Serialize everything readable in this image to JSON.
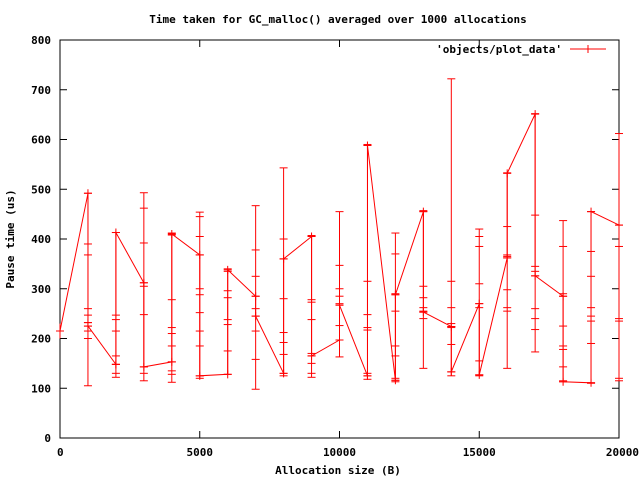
{
  "chart_data": {
    "type": "line",
    "title": "Time taken for GC_malloc() averaged over 1000 allocations",
    "xlabel": "Allocation size (B)",
    "ylabel": "Pause time (us)",
    "xlim": [
      0,
      20000
    ],
    "ylim": [
      0,
      800
    ],
    "x_ticks": [
      0,
      5000,
      10000,
      15000,
      20000
    ],
    "y_ticks": [
      0,
      100,
      200,
      300,
      400,
      500,
      600,
      700,
      800
    ],
    "x_tick_labels": [
      "0",
      "5000",
      "10000",
      "15000",
      "20000"
    ],
    "y_tick_labels": [
      "0",
      "100",
      "200",
      "300",
      "400",
      "500",
      "600",
      "700",
      "800"
    ],
    "grid": false,
    "legend_position": "top-right",
    "series": [
      {
        "name": "'objects/plot_data'",
        "color": "#ff0000",
        "points": [
          {
            "x": 0,
            "y": 215
          },
          {
            "x": 1000,
            "y": 492
          },
          {
            "x": 1000,
            "y": 232
          },
          {
            "x": 1000,
            "y": 225
          },
          {
            "x": 2000,
            "y": 148
          },
          {
            "x": 2000,
            "y": 148
          },
          {
            "x": 2000,
            "y": 413
          },
          {
            "x": 3000,
            "y": 312
          },
          {
            "x": 3000,
            "y": 143
          },
          {
            "x": 4000,
            "y": 153
          },
          {
            "x": 4000,
            "y": 410
          },
          {
            "x": 5000,
            "y": 368
          },
          {
            "x": 5000,
            "y": 125
          },
          {
            "x": 6000,
            "y": 128
          },
          {
            "x": 6000,
            "y": 338
          },
          {
            "x": 7000,
            "y": 285
          },
          {
            "x": 7000,
            "y": 245
          },
          {
            "x": 8000,
            "y": 130
          },
          {
            "x": 8000,
            "y": 360
          },
          {
            "x": 9000,
            "y": 405
          },
          {
            "x": 9000,
            "y": 165
          },
          {
            "x": 10000,
            "y": 197
          },
          {
            "x": 10000,
            "y": 267
          },
          {
            "x": 11000,
            "y": 125
          },
          {
            "x": 11000,
            "y": 588
          },
          {
            "x": 12000,
            "y": 116
          },
          {
            "x": 12000,
            "y": 288
          },
          {
            "x": 13000,
            "y": 455
          },
          {
            "x": 13000,
            "y": 253
          },
          {
            "x": 14000,
            "y": 224
          },
          {
            "x": 14000,
            "y": 133
          },
          {
            "x": 15000,
            "y": 270
          },
          {
            "x": 15000,
            "y": 127
          },
          {
            "x": 16000,
            "y": 362
          },
          {
            "x": 16000,
            "y": 532
          },
          {
            "x": 17000,
            "y": 651
          },
          {
            "x": 17000,
            "y": 326
          },
          {
            "x": 18000,
            "y": 285
          },
          {
            "x": 18000,
            "y": 113
          },
          {
            "x": 19000,
            "y": 111
          },
          {
            "x": 19000,
            "y": 455
          },
          {
            "x": 20000,
            "y": 428
          }
        ],
        "vertical_ranges": [
          {
            "x": 0,
            "min": 200,
            "max": 230
          },
          {
            "x": 1000,
            "min": 105,
            "max": 493,
            "marks": [
              492,
              390,
              368,
              260,
              247,
              232,
              225,
              215,
              200,
              105
            ]
          },
          {
            "x": 2000,
            "min": 122,
            "max": 413,
            "marks": [
              413,
              247,
              238,
              215,
              165,
              148,
              130,
              122
            ]
          },
          {
            "x": 3000,
            "min": 115,
            "max": 493,
            "marks": [
              493,
              462,
              392,
              312,
              305,
              248,
              143,
              130,
              115
            ]
          },
          {
            "x": 4000,
            "min": 112,
            "max": 412,
            "marks": [
              412,
              408,
              278,
              222,
              210,
              185,
              153,
              135,
              128,
              112
            ]
          },
          {
            "x": 5000,
            "min": 120,
            "max": 454,
            "marks": [
              454,
              445,
              405,
              368,
              300,
              288,
              252,
              215,
              185,
              125,
              120
            ]
          },
          {
            "x": 6000,
            "min": 128,
            "max": 340,
            "marks": [
              340,
              335,
              296,
              282,
              238,
              228,
              175,
              128
            ]
          },
          {
            "x": 7000,
            "min": 98,
            "max": 467,
            "marks": [
              467,
              378,
              325,
              285,
              260,
              245,
              215,
              158,
              98
            ]
          },
          {
            "x": 8000,
            "min": 125,
            "max": 543,
            "marks": [
              543,
              400,
              360,
              280,
              212,
              192,
              168,
              130,
              125
            ]
          },
          {
            "x": 9000,
            "min": 122,
            "max": 407,
            "marks": [
              407,
              405,
              278,
              273,
              238,
              170,
              165,
              150,
              130,
              122
            ]
          },
          {
            "x": 10000,
            "min": 163,
            "max": 455,
            "marks": [
              455,
              347,
              300,
              285,
              270,
              267,
              226,
              197,
              163
            ]
          },
          {
            "x": 11000,
            "min": 118,
            "max": 590,
            "marks": [
              590,
              588,
              315,
              248,
              222,
              217,
              130,
              125,
              118
            ]
          },
          {
            "x": 12000,
            "min": 113,
            "max": 412,
            "marks": [
              412,
              370,
              290,
              288,
              255,
              185,
              165,
              120,
              116,
              113
            ]
          },
          {
            "x": 13000,
            "min": 140,
            "max": 457,
            "marks": [
              457,
              455,
              305,
              282,
              262,
              255,
              253,
              240,
              140
            ]
          },
          {
            "x": 14000,
            "min": 125,
            "max": 722,
            "marks": [
              722,
              315,
              262,
              230,
              224,
              222,
              188,
              133,
              125
            ]
          },
          {
            "x": 15000,
            "min": 125,
            "max": 420,
            "marks": [
              420,
              405,
              385,
              310,
              270,
              262,
              155,
              127,
              125
            ]
          },
          {
            "x": 16000,
            "min": 140,
            "max": 533,
            "marks": [
              533,
              425,
              368,
              365,
              362,
              298,
              262,
              255,
              140
            ]
          },
          {
            "x": 17000,
            "min": 173,
            "max": 652,
            "marks": [
              652,
              448,
              345,
              335,
              326,
              260,
              240,
              218,
              173
            ]
          },
          {
            "x": 18000,
            "min": 113,
            "max": 437,
            "marks": [
              437,
              385,
              290,
              285,
              225,
              185,
              178,
              143,
              115,
              113
            ]
          },
          {
            "x": 19000,
            "min": 110,
            "max": 455,
            "marks": [
              455,
              375,
              325,
              262,
              245,
              235,
              190,
              111,
              110
            ]
          },
          {
            "x": 20000,
            "min": 115,
            "max": 612,
            "marks": [
              612,
              428,
              385,
              240,
              235,
              120,
              115
            ]
          }
        ]
      }
    ]
  }
}
